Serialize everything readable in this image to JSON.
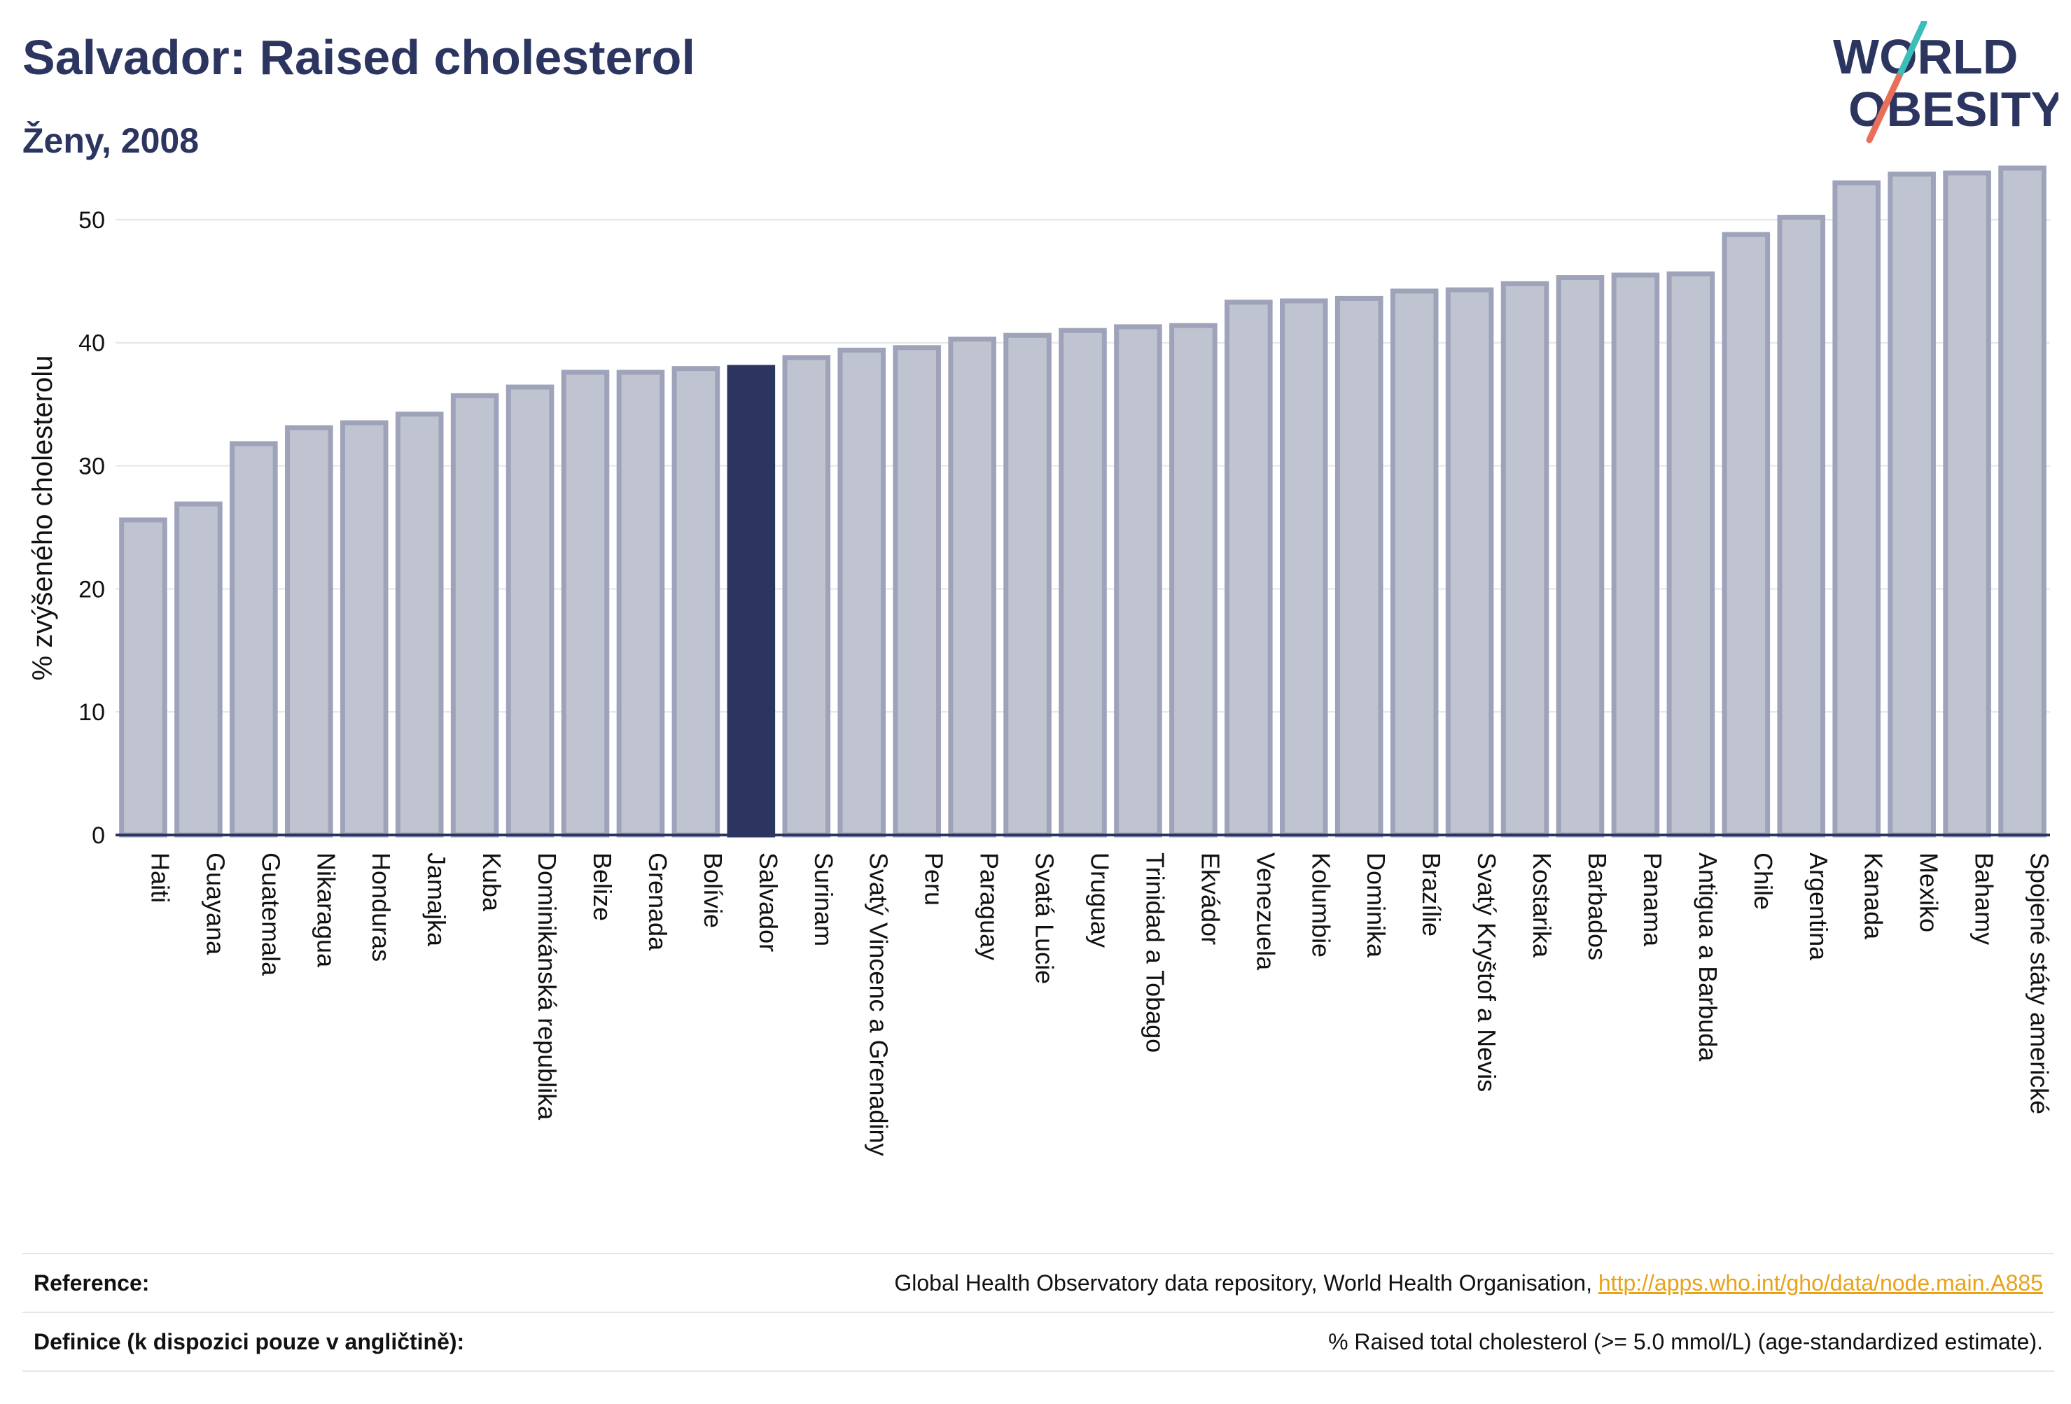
{
  "header": {
    "title": "Salvador: Raised cholesterol",
    "subtitle": "Ženy, 2008"
  },
  "logo": {
    "line1": "WORLD",
    "line2": "OBESITY"
  },
  "colors": {
    "bar": "#c0c3d0",
    "bar_border": "#9ea3ba",
    "highlight": "#2b3560",
    "axis": "#2b3560",
    "grid": "#e4e5ea",
    "link": "#e8a21a"
  },
  "chart_data": {
    "type": "bar",
    "ylabel": "% zvýšeného cholesterolu",
    "ylim": [
      0,
      55
    ],
    "yticks": [
      0,
      10,
      20,
      30,
      40,
      50
    ],
    "grid": true,
    "highlight": "Salvador",
    "categories": [
      "Haiti",
      "Guayana",
      "Guatemala",
      "Nikaragua",
      "Honduras",
      "Jamajka",
      "Kuba",
      "Dominikánská republika",
      "Belize",
      "Grenada",
      "Bolívie",
      "Salvador",
      "Surinam",
      "Svatý Vincenc a Grenadiny",
      "Peru",
      "Paraguay",
      "Svatá Lucie",
      "Uruguay",
      "Trinidad a Tobago",
      "Ekvádor",
      "Venezuela",
      "Kolumbie",
      "Dominika",
      "Brazílie",
      "Svatý Kryštof a Nevis",
      "Kostarika",
      "Barbados",
      "Panama",
      "Antigua a Barbuda",
      "Chile",
      "Argentina",
      "Kanada",
      "Mexiko",
      "Bahamy",
      "Spojené státy americké"
    ],
    "values": [
      25.6,
      26.9,
      31.8,
      33.1,
      33.5,
      34.2,
      35.7,
      36.4,
      37.6,
      37.6,
      37.9,
      38.0,
      38.8,
      39.4,
      39.6,
      40.3,
      40.6,
      41.0,
      41.3,
      41.4,
      43.3,
      43.4,
      43.6,
      44.2,
      44.3,
      44.8,
      45.3,
      45.5,
      45.6,
      48.8,
      50.2,
      53.0,
      53.7,
      53.8,
      54.2
    ]
  },
  "footer": {
    "reference_label": "Reference:",
    "reference_text": "Global Health Observatory data repository, World Health Organisation, ",
    "reference_link": "http://apps.who.int/gho/data/node.main.A885",
    "definition_label": "Definice (k dispozici pouze v angličtině):",
    "definition_text": "% Raised total cholesterol (>= 5.0 mmol/L) (age-standardized estimate)."
  }
}
